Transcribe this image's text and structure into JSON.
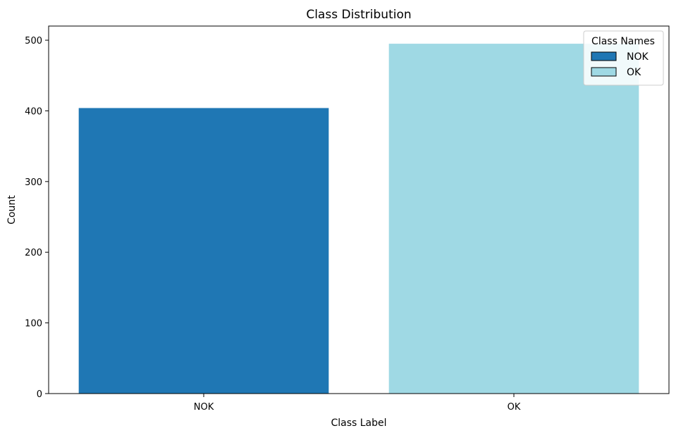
{
  "chart_data": {
    "type": "bar",
    "title": "Class Distribution",
    "xlabel": "Class Label",
    "ylabel": "Count",
    "categories": [
      "NOK",
      "OK"
    ],
    "values": [
      404,
      495
    ],
    "colors": [
      "#1f77b4",
      "#9fd9e4"
    ],
    "ylim": [
      0,
      520
    ],
    "yticks": [
      0,
      100,
      200,
      300,
      400,
      500
    ],
    "grid": false,
    "legend": {
      "title": "Class Names",
      "placement": "top-right",
      "entries": [
        {
          "label": "NOK",
          "color": "#1f77b4"
        },
        {
          "label": "OK",
          "color": "#9fd9e4"
        }
      ]
    }
  }
}
